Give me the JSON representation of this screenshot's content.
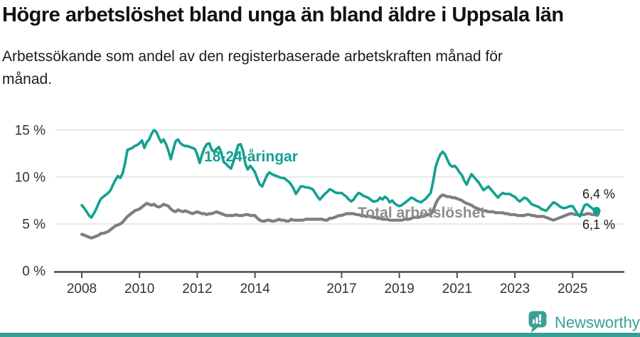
{
  "header": {
    "title": "Högre arbetslöshet bland unga än bland äldre i Uppsala län",
    "subtitle": "Arbetssökande som andel av den registerbaserade arbetskraften månad för månad."
  },
  "chart_data": {
    "type": "line",
    "frequency": "monthly",
    "start": "2008-01",
    "end": "2025-11",
    "ylim": [
      0,
      16
    ],
    "grid": "horizontal",
    "y_ticks": [
      {
        "value": 0,
        "label": "0 %"
      },
      {
        "value": 5,
        "label": "5 %"
      },
      {
        "value": 10,
        "label": "10 %"
      },
      {
        "value": 15,
        "label": "15 %"
      }
    ],
    "x_ticks": [
      {
        "year": 2008,
        "label": "2008"
      },
      {
        "year": 2010,
        "label": "2010"
      },
      {
        "year": 2012,
        "label": "2012"
      },
      {
        "year": 2014,
        "label": "2014"
      },
      {
        "year": 2017,
        "label": "2017"
      },
      {
        "year": 2019,
        "label": "2019"
      },
      {
        "year": 2021,
        "label": "2021"
      },
      {
        "year": 2023,
        "label": "2023"
      },
      {
        "year": 2025,
        "label": "2025"
      }
    ],
    "series": [
      {
        "name": "18-24-åringar",
        "color": "#12a092",
        "end_label": "6,4 %",
        "end_value": 6.4,
        "values": [
          7.0,
          6.7,
          6.3,
          5.9,
          5.7,
          6.1,
          6.6,
          7.2,
          7.7,
          7.9,
          8.1,
          8.3,
          8.6,
          9.2,
          9.7,
          10.1,
          9.9,
          10.4,
          11.5,
          12.9,
          13.0,
          13.1,
          13.3,
          13.4,
          13.6,
          13.9,
          13.1,
          13.7,
          14.0,
          14.6,
          15.0,
          14.8,
          14.2,
          13.7,
          14.0,
          13.5,
          12.8,
          11.9,
          12.9,
          13.8,
          14.0,
          13.6,
          13.4,
          13.3,
          13.3,
          13.2,
          13.1,
          13.0,
          12.4,
          11.5,
          12.4,
          13.1,
          13.5,
          13.6,
          12.9,
          12.7,
          13.0,
          13.2,
          12.6,
          11.6,
          11.4,
          11.1,
          10.9,
          11.6,
          12.5,
          13.4,
          13.5,
          12.8,
          11.4,
          10.8,
          11.2,
          10.9,
          10.5,
          9.8,
          9.2,
          9.0,
          9.6,
          10.2,
          10.5,
          10.3,
          10.2,
          10.1,
          10.0,
          9.9,
          9.9,
          9.7,
          9.5,
          9.2,
          8.8,
          8.2,
          8.6,
          9.0,
          9.0,
          8.9,
          8.9,
          8.8,
          8.7,
          8.3,
          7.9,
          7.6,
          7.9,
          8.2,
          8.4,
          8.7,
          8.6,
          8.4,
          8.3,
          8.3,
          8.3,
          8.1,
          7.9,
          7.6,
          7.4,
          7.6,
          8.0,
          8.3,
          8.2,
          8.0,
          7.9,
          7.8,
          7.6,
          7.4,
          7.4,
          7.5,
          7.8,
          7.6,
          7.9,
          7.7,
          7.3,
          7.5,
          7.2,
          7.0,
          6.9,
          7.0,
          7.2,
          7.4,
          7.6,
          7.8,
          7.7,
          7.5,
          7.4,
          7.3,
          7.5,
          7.7,
          8.0,
          8.3,
          9.5,
          11.0,
          11.8,
          12.4,
          12.7,
          12.4,
          11.8,
          11.3,
          11.1,
          11.2,
          10.9,
          10.5,
          10.2,
          9.6,
          9.2,
          9.8,
          10.3,
          10.0,
          9.7,
          9.4,
          9.0,
          8.6,
          8.8,
          9.0,
          8.7,
          8.4,
          8.1,
          7.8,
          8.1,
          8.3,
          8.2,
          8.2,
          8.2,
          8.0,
          7.9,
          7.6,
          7.4,
          7.6,
          7.8,
          7.7,
          7.4,
          7.1,
          7.0,
          6.9,
          6.8,
          6.6,
          6.5,
          6.4,
          6.7,
          7.0,
          7.3,
          7.2,
          7.0,
          6.8,
          6.7,
          6.7,
          6.8,
          6.9,
          6.9,
          6.5,
          6.1,
          5.8,
          6.4,
          7.0,
          7.1,
          6.9,
          6.7,
          6.5,
          6.4
        ]
      },
      {
        "name": "Total arbetslöshet",
        "color": "#7e7e7e",
        "end_label": "6,1 %",
        "end_value": 6.1,
        "values": [
          3.9,
          3.8,
          3.7,
          3.6,
          3.5,
          3.6,
          3.7,
          3.8,
          4.0,
          4.0,
          4.1,
          4.2,
          4.4,
          4.6,
          4.8,
          4.9,
          5.0,
          5.2,
          5.5,
          5.8,
          6.0,
          6.2,
          6.4,
          6.5,
          6.6,
          6.8,
          7.0,
          7.2,
          7.1,
          7.0,
          7.1,
          6.9,
          6.8,
          6.9,
          7.1,
          7.0,
          6.9,
          6.6,
          6.4,
          6.3,
          6.5,
          6.4,
          6.3,
          6.4,
          6.3,
          6.2,
          6.1,
          6.2,
          6.3,
          6.2,
          6.1,
          6.1,
          6.0,
          6.1,
          6.1,
          6.2,
          6.3,
          6.2,
          6.1,
          6.0,
          5.9,
          5.9,
          5.9,
          5.9,
          6.0,
          5.9,
          5.9,
          5.9,
          6.0,
          6.0,
          5.9,
          5.9,
          5.9,
          5.6,
          5.4,
          5.3,
          5.3,
          5.4,
          5.4,
          5.3,
          5.3,
          5.4,
          5.5,
          5.4,
          5.4,
          5.3,
          5.3,
          5.5,
          5.4,
          5.4,
          5.4,
          5.4,
          5.4,
          5.5,
          5.5,
          5.5,
          5.5,
          5.5,
          5.5,
          5.5,
          5.5,
          5.4,
          5.4,
          5.6,
          5.6,
          5.7,
          5.8,
          5.9,
          5.9,
          6.0,
          6.1,
          6.1,
          6.1,
          6.1,
          6.0,
          6.0,
          5.9,
          5.9,
          5.8,
          5.8,
          5.8,
          5.7,
          5.7,
          5.6,
          5.6,
          5.5,
          5.5,
          5.5,
          5.4,
          5.4,
          5.4,
          5.4,
          5.4,
          5.4,
          5.5,
          5.5,
          5.5,
          5.6,
          5.7,
          5.7,
          5.7,
          5.8,
          5.8,
          5.9,
          6.0,
          6.0,
          6.4,
          7.1,
          7.6,
          7.9,
          8.1,
          8.0,
          7.9,
          7.9,
          7.8,
          7.8,
          7.7,
          7.6,
          7.5,
          7.3,
          7.2,
          7.1,
          7.0,
          6.8,
          6.7,
          6.6,
          6.5,
          6.4,
          6.4,
          6.3,
          6.3,
          6.3,
          6.2,
          6.2,
          6.2,
          6.2,
          6.1,
          6.1,
          6.0,
          6.0,
          6.0,
          5.9,
          5.9,
          5.9,
          5.9,
          6.0,
          6.0,
          5.9,
          5.9,
          5.8,
          5.8,
          5.8,
          5.8,
          5.7,
          5.6,
          5.5,
          5.4,
          5.5,
          5.6,
          5.7,
          5.8,
          5.9,
          6.0,
          6.1,
          6.1,
          6.0,
          6.0,
          5.9,
          6.0,
          6.0,
          6.1,
          6.1,
          6.0,
          6.0,
          6.1
        ]
      }
    ]
  },
  "footer": {
    "brand": "Newsworthy",
    "logo_icon": "bar-chart-speech-bubble-icon",
    "accent_color": "#35a096"
  }
}
